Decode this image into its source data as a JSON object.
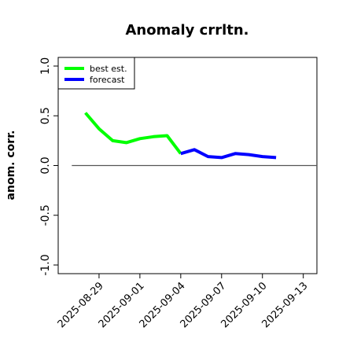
{
  "chart_data": {
    "type": "line",
    "title": "Anomaly crrltn.",
    "ylabel": "anom. corr.",
    "xlabel": "",
    "ylim": [
      -1.0,
      1.0
    ],
    "xlim": [
      "2025-08-26",
      "2025-09-14"
    ],
    "grid": false,
    "legend_position": "top-left",
    "yticks": [
      "-1.0",
      "-0.5",
      "0.0",
      "0.5",
      "1.0"
    ],
    "xticks": [
      "2025-08-29",
      "2025-09-01",
      "2025-09-04",
      "2025-09-07",
      "2025-09-10",
      "2025-09-13"
    ],
    "highlighted_xtick": "2025-09-04",
    "reference_line": 0.0,
    "reference_line_range": [
      "2025-08-27",
      "2025-09-14"
    ],
    "series": [
      {
        "name": "best est.",
        "color": "#00ff00",
        "x": [
          "2025-08-28",
          "2025-08-29",
          "2025-08-30",
          "2025-08-31",
          "2025-09-01",
          "2025-09-02",
          "2025-09-03",
          "2025-09-04"
        ],
        "y": [
          0.53,
          0.37,
          0.25,
          0.23,
          0.27,
          0.29,
          0.3,
          0.12
        ]
      },
      {
        "name": "forecast",
        "color": "#0000ff",
        "x": [
          "2025-09-04",
          "2025-09-05",
          "2025-09-06",
          "2025-09-07",
          "2025-09-08",
          "2025-09-09",
          "2025-09-10",
          "2025-09-11"
        ],
        "y": [
          0.12,
          0.16,
          0.09,
          0.08,
          0.12,
          0.11,
          0.09,
          0.08
        ]
      }
    ],
    "colors": {
      "highlight_tick": "#228b22",
      "reference": "#555555"
    }
  }
}
